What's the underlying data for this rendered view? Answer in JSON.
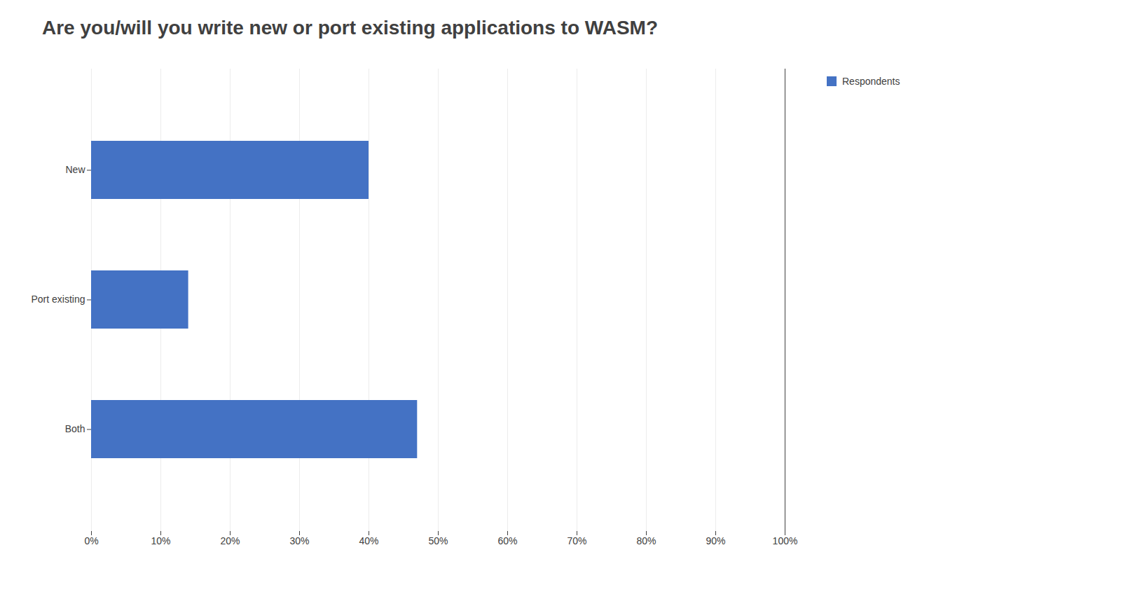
{
  "chart_data": {
    "type": "bar",
    "orientation": "horizontal",
    "title": "Are you/will you write new or port existing applications to WASM?",
    "categories": [
      "New",
      "Port existing",
      "Both"
    ],
    "series": [
      {
        "name": "Respondents",
        "color": "#4472c4",
        "values": [
          40,
          14,
          47
        ]
      }
    ],
    "xlim": [
      0,
      100
    ],
    "xticks": [
      {
        "value": 0,
        "label": "0%"
      },
      {
        "value": 10,
        "label": "10%"
      },
      {
        "value": 20,
        "label": "20%"
      },
      {
        "value": 30,
        "label": "30%"
      },
      {
        "value": 40,
        "label": "40%"
      },
      {
        "value": 50,
        "label": "50%"
      },
      {
        "value": 60,
        "label": "60%"
      },
      {
        "value": 70,
        "label": "70%"
      },
      {
        "value": 80,
        "label": "80%"
      },
      {
        "value": 90,
        "label": "90%"
      },
      {
        "value": 100,
        "label": "100%"
      }
    ],
    "grid": true,
    "legend": "right"
  }
}
